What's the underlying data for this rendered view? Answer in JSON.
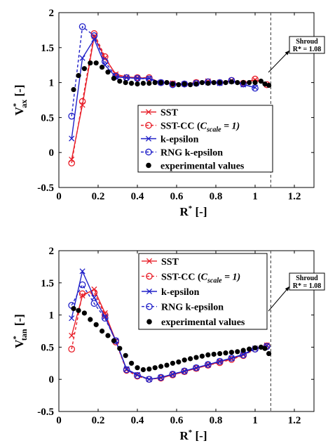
{
  "chart_data": [
    {
      "type": "line",
      "xlabel_main": "R",
      "xlabel_sup": "*",
      "xlabel_tail": " [-]",
      "ylabel_main": "V",
      "ylabel_sup": "*",
      "ylabel_sub": "ax",
      "ylabel_tail": " [-]",
      "xlim": [
        0,
        1.3
      ],
      "ylim": [
        -0.5,
        2
      ],
      "xticks": [
        0,
        0.2,
        0.4,
        0.6,
        0.8,
        1,
        1.2
      ],
      "xtick_labels": [
        "0",
        "0.2",
        "0.4",
        "0.6",
        "0.8",
        "1",
        "1.2"
      ],
      "yticks": [
        -0.5,
        0,
        0.5,
        1,
        1.5,
        2
      ],
      "ytick_labels": [
        "-0.5",
        "0",
        "0.5",
        "1",
        "1.5",
        "2"
      ],
      "grid": false,
      "legend_position": "bottom-center",
      "shroud": {
        "x": 1.08,
        "line1": "Shroud",
        "line2": "R* = 1.08"
      },
      "series": [
        {
          "name": "SST",
          "legend": {
            "type": "plain",
            "text": "SST"
          },
          "color": "#e8202a",
          "marker": "x",
          "dash": "solid",
          "x": [
            0.065,
            0.12,
            0.18,
            0.235,
            0.29,
            0.345,
            0.4,
            0.46,
            0.52,
            0.58,
            0.64,
            0.7,
            0.76,
            0.82,
            0.88,
            0.94,
            1.0,
            1.06
          ],
          "y": [
            -0.1,
            0.68,
            1.66,
            1.35,
            1.12,
            1.08,
            1.07,
            1.06,
            1.0,
            0.99,
            0.98,
            1.0,
            1.02,
            1.0,
            1.03,
            0.99,
            1.04,
            0.97
          ]
        },
        {
          "name": "SST-CC (C_scale = 1)",
          "legend": {
            "type": "csc",
            "before": "SST-CC (",
            "c": "C",
            "sub": "scale",
            "after": " = 1)"
          },
          "color": "#e8202a",
          "marker": "o",
          "dash": "4,3",
          "x": [
            0.065,
            0.12,
            0.18,
            0.235,
            0.29,
            0.345,
            0.4,
            0.46,
            0.52,
            0.58,
            0.64,
            0.7,
            0.76,
            0.82,
            0.88,
            0.94,
            1.0,
            1.06
          ],
          "y": [
            -0.15,
            0.73,
            1.7,
            1.37,
            1.1,
            1.07,
            1.07,
            1.07,
            1.0,
            0.98,
            0.98,
            1.0,
            1.01,
            1.0,
            1.03,
            0.99,
            1.05,
            0.97
          ]
        },
        {
          "name": "k-epsilon",
          "legend": {
            "type": "plain",
            "text": "k-epsilon"
          },
          "color": "#2020c8",
          "marker": "x",
          "dash": "solid",
          "x": [
            0.065,
            0.12,
            0.18,
            0.235,
            0.29,
            0.345,
            0.4,
            0.46,
            0.52,
            0.58,
            0.64,
            0.7,
            0.76,
            0.82,
            0.88,
            0.94,
            1.0
          ],
          "y": [
            0.2,
            1.35,
            1.62,
            1.25,
            1.08,
            1.07,
            1.06,
            1.06,
            1.0,
            0.98,
            0.98,
            0.99,
            1.0,
            0.99,
            1.02,
            0.97,
            0.93
          ]
        },
        {
          "name": "RNG k-epsilon",
          "legend": {
            "type": "plain",
            "text": "RNG k-epsilon"
          },
          "color": "#2020c8",
          "marker": "o",
          "dash": "4,3",
          "x": [
            0.065,
            0.12,
            0.18,
            0.235,
            0.29,
            0.345,
            0.4,
            0.46,
            0.52,
            0.58,
            0.64,
            0.7,
            0.76,
            0.82,
            0.88,
            0.94,
            1.0
          ],
          "y": [
            0.52,
            1.8,
            1.67,
            1.3,
            1.09,
            1.07,
            1.06,
            1.05,
            1.0,
            0.97,
            0.98,
            0.99,
            1.01,
            1.0,
            1.03,
            0.98,
            0.92
          ]
        }
      ],
      "experimental": {
        "name": "experimental values",
        "x": [
          0.075,
          0.1,
          0.13,
          0.16,
          0.19,
          0.22,
          0.25,
          0.28,
          0.31,
          0.34,
          0.37,
          0.4,
          0.43,
          0.46,
          0.49,
          0.52,
          0.55,
          0.58,
          0.61,
          0.64,
          0.67,
          0.7,
          0.73,
          0.76,
          0.79,
          0.82,
          0.85,
          0.88,
          0.91,
          0.94,
          0.97,
          1.0,
          1.03,
          1.05,
          1.07
        ],
        "y": [
          0.9,
          1.1,
          1.2,
          1.28,
          1.28,
          1.22,
          1.15,
          1.06,
          1.02,
          1.0,
          0.99,
          0.98,
          0.99,
          0.99,
          1.0,
          1.0,
          1.0,
          0.98,
          0.97,
          0.98,
          0.97,
          0.98,
          1.0,
          0.99,
          1.0,
          1.0,
          1.0,
          1.01,
          1.0,
          1.0,
          1.0,
          1.0,
          1.02,
          0.98,
          0.96
        ]
      }
    },
    {
      "type": "line",
      "xlabel_main": "R",
      "xlabel_sup": "*",
      "xlabel_tail": " [-]",
      "ylabel_main": "V",
      "ylabel_sup": "*",
      "ylabel_sub": "tan",
      "ylabel_tail": " [-]",
      "xlim": [
        0,
        1.3
      ],
      "ylim": [
        -0.5,
        2
      ],
      "xticks": [
        0,
        0.2,
        0.4,
        0.6,
        0.8,
        1,
        1.2
      ],
      "xtick_labels": [
        "0",
        "0.2",
        "0.4",
        "0.6",
        "0.8",
        "1",
        "1.2"
      ],
      "yticks": [
        -0.5,
        0,
        0.5,
        1,
        1.5,
        2
      ],
      "ytick_labels": [
        "-0.5",
        "0",
        "0.5",
        "1",
        "1.5",
        "2"
      ],
      "grid": false,
      "legend_position": "top-center",
      "shroud": {
        "x": 1.08,
        "line1": "Shroud",
        "line2": "R* = 1.08"
      },
      "series": [
        {
          "name": "SST",
          "legend": {
            "type": "plain",
            "text": "SST"
          },
          "color": "#e8202a",
          "marker": "x",
          "dash": "solid",
          "x": [
            0.065,
            0.12,
            0.18,
            0.235,
            0.29,
            0.345,
            0.4,
            0.46,
            0.52,
            0.58,
            0.64,
            0.7,
            0.76,
            0.82,
            0.88,
            0.94,
            1.0,
            1.06
          ],
          "y": [
            0.68,
            1.3,
            1.4,
            1.03,
            0.6,
            0.15,
            0.07,
            0.0,
            0.02,
            0.07,
            0.12,
            0.17,
            0.22,
            0.27,
            0.32,
            0.38,
            0.48,
            0.53
          ]
        },
        {
          "name": "SST-CC (C_scale = 1)",
          "legend": {
            "type": "csc",
            "before": "SST-CC (",
            "c": "C",
            "sub": "scale",
            "after": " = 1)"
          },
          "color": "#e8202a",
          "marker": "o",
          "dash": "4,3",
          "x": [
            0.065,
            0.12,
            0.18,
            0.235,
            0.29,
            0.345,
            0.4,
            0.46,
            0.52,
            0.58,
            0.64,
            0.7,
            0.76,
            0.82,
            0.88,
            0.94,
            1.0,
            1.06
          ],
          "y": [
            0.47,
            1.33,
            1.35,
            1.0,
            0.58,
            0.14,
            0.05,
            0.0,
            0.02,
            0.07,
            0.12,
            0.17,
            0.22,
            0.26,
            0.31,
            0.37,
            0.47,
            0.52
          ]
        },
        {
          "name": "k-epsilon",
          "legend": {
            "type": "plain",
            "text": "k-epsilon"
          },
          "color": "#2020c8",
          "marker": "x",
          "dash": "solid",
          "x": [
            0.065,
            0.12,
            0.18,
            0.235,
            0.29,
            0.345,
            0.4,
            0.46,
            0.52,
            0.58,
            0.64,
            0.7,
            0.76,
            0.82,
            0.88,
            0.94,
            1.0,
            1.06
          ],
          "y": [
            0.95,
            1.68,
            1.27,
            0.97,
            0.6,
            0.16,
            0.07,
            0.0,
            0.03,
            0.08,
            0.13,
            0.18,
            0.23,
            0.28,
            0.33,
            0.39,
            0.48,
            0.52
          ]
        },
        {
          "name": "RNG k-epsilon",
          "legend": {
            "type": "plain",
            "text": "RNG k-epsilon"
          },
          "color": "#2020c8",
          "marker": "o",
          "dash": "4,3",
          "x": [
            0.065,
            0.12,
            0.18,
            0.235,
            0.29,
            0.345,
            0.4,
            0.46,
            0.52,
            0.58,
            0.64,
            0.7,
            0.76,
            0.82,
            0.88,
            0.94,
            1.0,
            1.06
          ],
          "y": [
            1.15,
            1.47,
            1.18,
            0.95,
            0.6,
            0.15,
            0.06,
            0.0,
            0.03,
            0.08,
            0.13,
            0.18,
            0.23,
            0.28,
            0.33,
            0.38,
            0.47,
            0.51
          ]
        }
      ],
      "experimental": {
        "name": "experimental values",
        "x": [
          0.075,
          0.1,
          0.13,
          0.16,
          0.19,
          0.22,
          0.25,
          0.28,
          0.31,
          0.34,
          0.37,
          0.4,
          0.43,
          0.46,
          0.49,
          0.52,
          0.55,
          0.58,
          0.61,
          0.64,
          0.67,
          0.7,
          0.73,
          0.76,
          0.79,
          0.82,
          0.85,
          0.88,
          0.91,
          0.94,
          0.97,
          1.0,
          1.03,
          1.05,
          1.07
        ],
        "y": [
          1.1,
          1.07,
          1.03,
          0.93,
          0.85,
          0.75,
          0.68,
          0.6,
          0.48,
          0.37,
          0.25,
          0.18,
          0.15,
          0.16,
          0.18,
          0.2,
          0.22,
          0.25,
          0.27,
          0.3,
          0.32,
          0.34,
          0.36,
          0.38,
          0.39,
          0.4,
          0.41,
          0.42,
          0.43,
          0.45,
          0.47,
          0.49,
          0.5,
          0.48,
          0.4
        ]
      }
    }
  ]
}
